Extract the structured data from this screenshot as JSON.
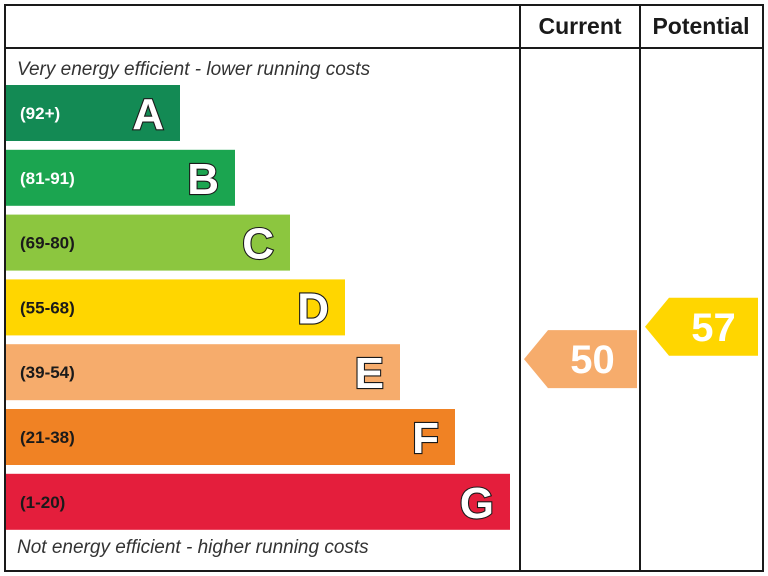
{
  "header": {
    "current_label": "Current",
    "potential_label": "Potential"
  },
  "captions": {
    "top": "Very energy efficient - lower running costs",
    "bottom": "Not energy efficient - higher running costs"
  },
  "chart_data": {
    "type": "bar",
    "title": "",
    "categories": [
      "A",
      "B",
      "C",
      "D",
      "E",
      "F",
      "G"
    ],
    "bands": [
      {
        "letter": "A",
        "range": "(92+)",
        "min": 92,
        "max": 100,
        "color": "#138a54",
        "range_color": "#ffffff",
        "letter_color": "#ffffff"
      },
      {
        "letter": "B",
        "range": "(81-91)",
        "min": 81,
        "max": 91,
        "color": "#1ba550",
        "range_color": "#ffffff",
        "letter_color": "#ffffff"
      },
      {
        "letter": "C",
        "range": "(69-80)",
        "min": 69,
        "max": 80,
        "color": "#8cc63f",
        "range_color": "#1a1a1a",
        "letter_color": "#ffffff"
      },
      {
        "letter": "D",
        "range": "(55-68)",
        "min": 55,
        "max": 68,
        "color": "#ffd600",
        "range_color": "#1a1a1a",
        "letter_color": "#ffffff"
      },
      {
        "letter": "E",
        "range": "(39-54)",
        "min": 39,
        "max": 54,
        "color": "#f6ac6c",
        "range_color": "#1a1a1a",
        "letter_color": "#ffffff"
      },
      {
        "letter": "F",
        "range": "(21-38)",
        "min": 21,
        "max": 38,
        "color": "#f08224",
        "range_color": "#1a1a1a",
        "letter_color": "#ffffff"
      },
      {
        "letter": "G",
        "range": "(1-20)",
        "min": 1,
        "max": 20,
        "color": "#e41e3c",
        "range_color": "#1a1a1a",
        "letter_color": "#ffffff"
      }
    ],
    "series": [
      {
        "name": "Current",
        "value": 50,
        "band": "E",
        "color": "#f6ac6c"
      },
      {
        "name": "Potential",
        "value": 57,
        "band": "D",
        "color": "#ffd600"
      }
    ]
  }
}
